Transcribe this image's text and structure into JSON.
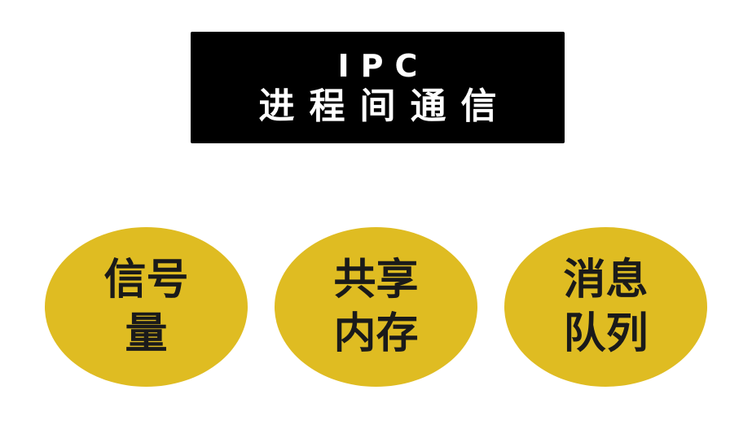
{
  "title": {
    "line1": "IPC",
    "line2": "进程间通信"
  },
  "colors": {
    "title_background": "#000000",
    "title_text": "#ffffff",
    "ellipse_fill": "#dfbc22",
    "ellipse_text": "#1a1a1a"
  },
  "items": [
    {
      "label": "信号量"
    },
    {
      "label": "共享内存"
    },
    {
      "label": "消息队列"
    }
  ]
}
